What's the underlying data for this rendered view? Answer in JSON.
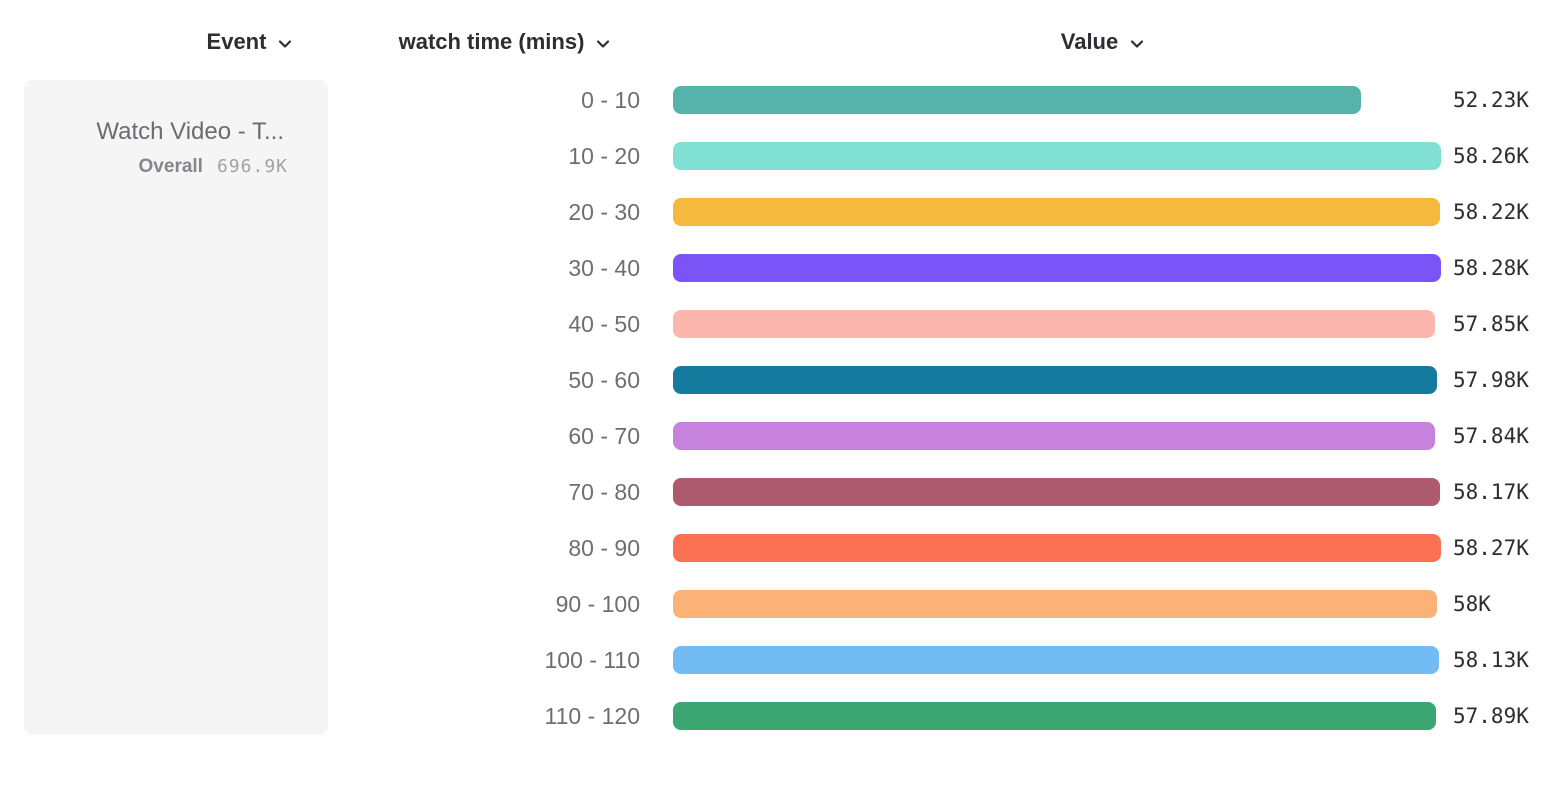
{
  "headers": {
    "event": "Event",
    "breakdown": "watch time (mins)",
    "value": "Value"
  },
  "event_card": {
    "title": "Watch Video - T...",
    "overall_label": "Overall",
    "overall_value": "696.9K"
  },
  "chart_data": {
    "type": "bar",
    "orientation": "horizontal",
    "title": "",
    "xlabel": "Value",
    "ylabel": "watch time (mins)",
    "legend": false,
    "grid": false,
    "overall_total": "696.9K",
    "rows": [
      {
        "label": "0 - 10",
        "value": 52.23,
        "value_label": "52.23K",
        "color": "#55b3ab"
      },
      {
        "label": "10 - 20",
        "value": 58.26,
        "value_label": "58.26K",
        "color": "#7fe0d3"
      },
      {
        "label": "20 - 30",
        "value": 58.22,
        "value_label": "58.22K",
        "color": "#f5b93d"
      },
      {
        "label": "30 - 40",
        "value": 58.28,
        "value_label": "58.28K",
        "color": "#7a54f7"
      },
      {
        "label": "40 - 50",
        "value": 57.85,
        "value_label": "57.85K",
        "color": "#fdb6ad"
      },
      {
        "label": "50 - 60",
        "value": 57.98,
        "value_label": "57.98K",
        "color": "#147b9e"
      },
      {
        "label": "60 - 70",
        "value": 57.84,
        "value_label": "57.84K",
        "color": "#c782de"
      },
      {
        "label": "70 - 80",
        "value": 58.17,
        "value_label": "58.17K",
        "color": "#ad5a6e"
      },
      {
        "label": "80 - 90",
        "value": 58.27,
        "value_label": "58.27K",
        "color": "#fc7154"
      },
      {
        "label": "90 - 100",
        "value": 58.0,
        "value_label": "58K",
        "color": "#fcb176"
      },
      {
        "label": "100 - 110",
        "value": 58.13,
        "value_label": "58.13K",
        "color": "#73bbf3"
      },
      {
        "label": "110 - 120",
        "value": 57.89,
        "value_label": "57.89K",
        "color": "#3ba671"
      }
    ]
  }
}
